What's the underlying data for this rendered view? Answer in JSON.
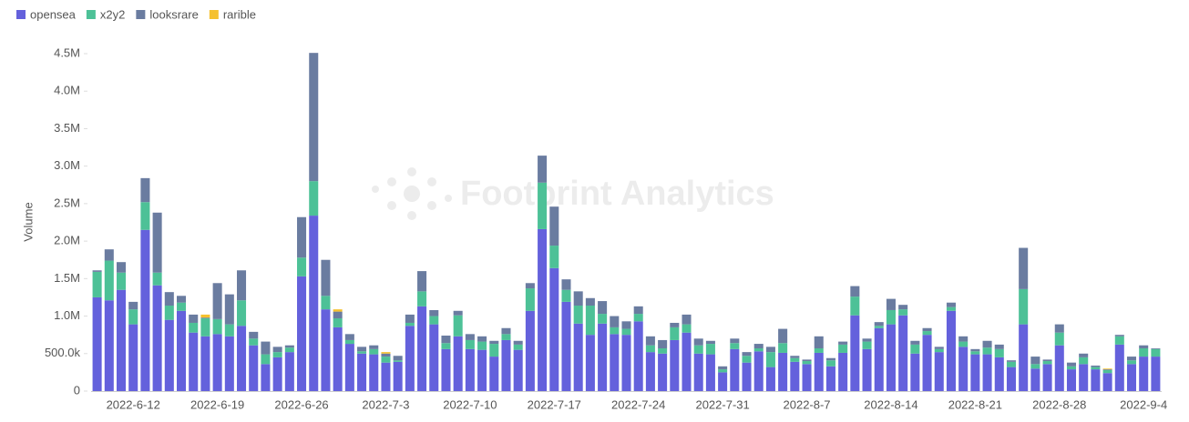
{
  "chart_data": {
    "type": "stacked-bar",
    "watermark": "Footprint Analytics",
    "y_label": "Volume",
    "categories": [
      null,
      null,
      null,
      "2022-6-12",
      null,
      null,
      null,
      null,
      null,
      null,
      "2022-6-19",
      null,
      null,
      null,
      null,
      null,
      null,
      "2022-6-26",
      null,
      null,
      null,
      null,
      null,
      null,
      "2022-7-3",
      null,
      null,
      null,
      null,
      null,
      null,
      "2022-7-10",
      null,
      null,
      null,
      null,
      null,
      null,
      "2022-7-17",
      null,
      null,
      null,
      null,
      null,
      null,
      "2022-7-24",
      null,
      null,
      null,
      null,
      null,
      null,
      "2022-7-31",
      null,
      null,
      null,
      null,
      null,
      null,
      "2022-8-7",
      null,
      null,
      null,
      null,
      null,
      null,
      "2022-8-14",
      null,
      null,
      null,
      null,
      null,
      null,
      "2022-8-21",
      null,
      null,
      null,
      null,
      null,
      null,
      "2022-8-28",
      null,
      null,
      null,
      null,
      null,
      null,
      "2022-9-4",
      null
    ],
    "series": [
      {
        "name": "opensea",
        "color": "#6461dc",
        "values": [
          1250000,
          1210000,
          1350000,
          890000,
          2150000,
          1410000,
          950000,
          1070000,
          780000,
          730000,
          760000,
          730000,
          870000,
          610000,
          360000,
          450000,
          520000,
          1530000,
          2340000,
          1090000,
          850000,
          630000,
          500000,
          490000,
          380000,
          390000,
          870000,
          1130000,
          890000,
          560000,
          730000,
          560000,
          550000,
          460000,
          680000,
          550000,
          1070000,
          2160000,
          1640000,
          1190000,
          900000,
          750000,
          900000,
          760000,
          750000,
          930000,
          520000,
          500000,
          680000,
          780000,
          500000,
          490000,
          250000,
          560000,
          380000,
          530000,
          320000,
          510000,
          390000,
          360000,
          510000,
          330000,
          510000,
          1010000,
          560000,
          840000,
          890000,
          1010000,
          500000,
          750000,
          520000,
          1070000,
          590000,
          490000,
          490000,
          450000,
          320000,
          890000,
          300000,
          360000,
          610000,
          290000,
          360000,
          290000,
          240000,
          620000,
          360000,
          460000,
          460000
        ]
      },
      {
        "name": "x2y2",
        "color": "#4dc197",
        "values": [
          340000,
          530000,
          230000,
          200000,
          370000,
          170000,
          190000,
          110000,
          130000,
          240000,
          200000,
          160000,
          340000,
          90000,
          130000,
          70000,
          60000,
          250000,
          460000,
          180000,
          120000,
          50000,
          30000,
          70000,
          80000,
          20000,
          40000,
          200000,
          110000,
          80000,
          280000,
          120000,
          110000,
          170000,
          80000,
          70000,
          300000,
          620000,
          300000,
          160000,
          240000,
          390000,
          130000,
          90000,
          80000,
          100000,
          90000,
          70000,
          170000,
          110000,
          110000,
          140000,
          40000,
          80000,
          90000,
          40000,
          200000,
          130000,
          50000,
          40000,
          60000,
          80000,
          110000,
          250000,
          100000,
          30000,
          190000,
          80000,
          120000,
          50000,
          40000,
          50000,
          70000,
          40000,
          90000,
          110000,
          70000,
          470000,
          60000,
          40000,
          170000,
          40000,
          90000,
          30000,
          40000,
          110000,
          50000,
          110000,
          100000
        ]
      },
      {
        "name": "looksrare",
        "color": "#6a7ca0",
        "values": [
          20000,
          150000,
          140000,
          100000,
          320000,
          800000,
          180000,
          90000,
          110000,
          10000,
          480000,
          400000,
          400000,
          90000,
          170000,
          70000,
          30000,
          540000,
          1710000,
          480000,
          90000,
          80000,
          60000,
          50000,
          40000,
          60000,
          110000,
          270000,
          80000,
          100000,
          60000,
          80000,
          70000,
          40000,
          80000,
          50000,
          70000,
          360000,
          520000,
          140000,
          190000,
          100000,
          170000,
          150000,
          100000,
          100000,
          120000,
          110000,
          60000,
          130000,
          90000,
          40000,
          40000,
          60000,
          50000,
          60000,
          70000,
          190000,
          30000,
          20000,
          160000,
          30000,
          40000,
          140000,
          40000,
          50000,
          150000,
          60000,
          50000,
          40000,
          30000,
          60000,
          70000,
          30000,
          90000,
          60000,
          20000,
          550000,
          100000,
          20000,
          110000,
          50000,
          50000,
          20000,
          10000,
          20000,
          50000,
          40000,
          10000
        ]
      },
      {
        "name": "rarible",
        "color": "#f5c12e",
        "values": [
          0,
          0,
          0,
          0,
          0,
          0,
          0,
          0,
          0,
          40000,
          0,
          0,
          0,
          0,
          0,
          0,
          0,
          0,
          0,
          0,
          30000,
          0,
          0,
          0,
          20000,
          0,
          0,
          0,
          0,
          0,
          0,
          0,
          0,
          0,
          0,
          0,
          0,
          0,
          0,
          0,
          0,
          0,
          0,
          0,
          0,
          0,
          0,
          0,
          0,
          0,
          0,
          0,
          0,
          0,
          0,
          0,
          0,
          0,
          0,
          0,
          0,
          0,
          0,
          0,
          0,
          0,
          0,
          0,
          0,
          0,
          0,
          0,
          0,
          0,
          0,
          0,
          0,
          0,
          0,
          0,
          0,
          0,
          0,
          0,
          10000,
          0,
          0,
          0,
          0
        ]
      }
    ],
    "ylim": [
      0,
      4500000
    ],
    "yticks": [
      0,
      {
        "value": 500000,
        "label": "500.0k"
      },
      {
        "value": 1000000,
        "label": "1.0M"
      },
      {
        "value": 1500000,
        "label": "1.5M"
      },
      {
        "value": 2000000,
        "label": "2.0M"
      },
      {
        "value": 2500000,
        "label": "2.5M"
      },
      {
        "value": 3000000,
        "label": "3.0M"
      },
      {
        "value": 3500000,
        "label": "3.5M"
      },
      {
        "value": 4000000,
        "label": "4.0M"
      },
      {
        "value": 4500000,
        "label": "4.5M"
      }
    ],
    "grid": false
  }
}
